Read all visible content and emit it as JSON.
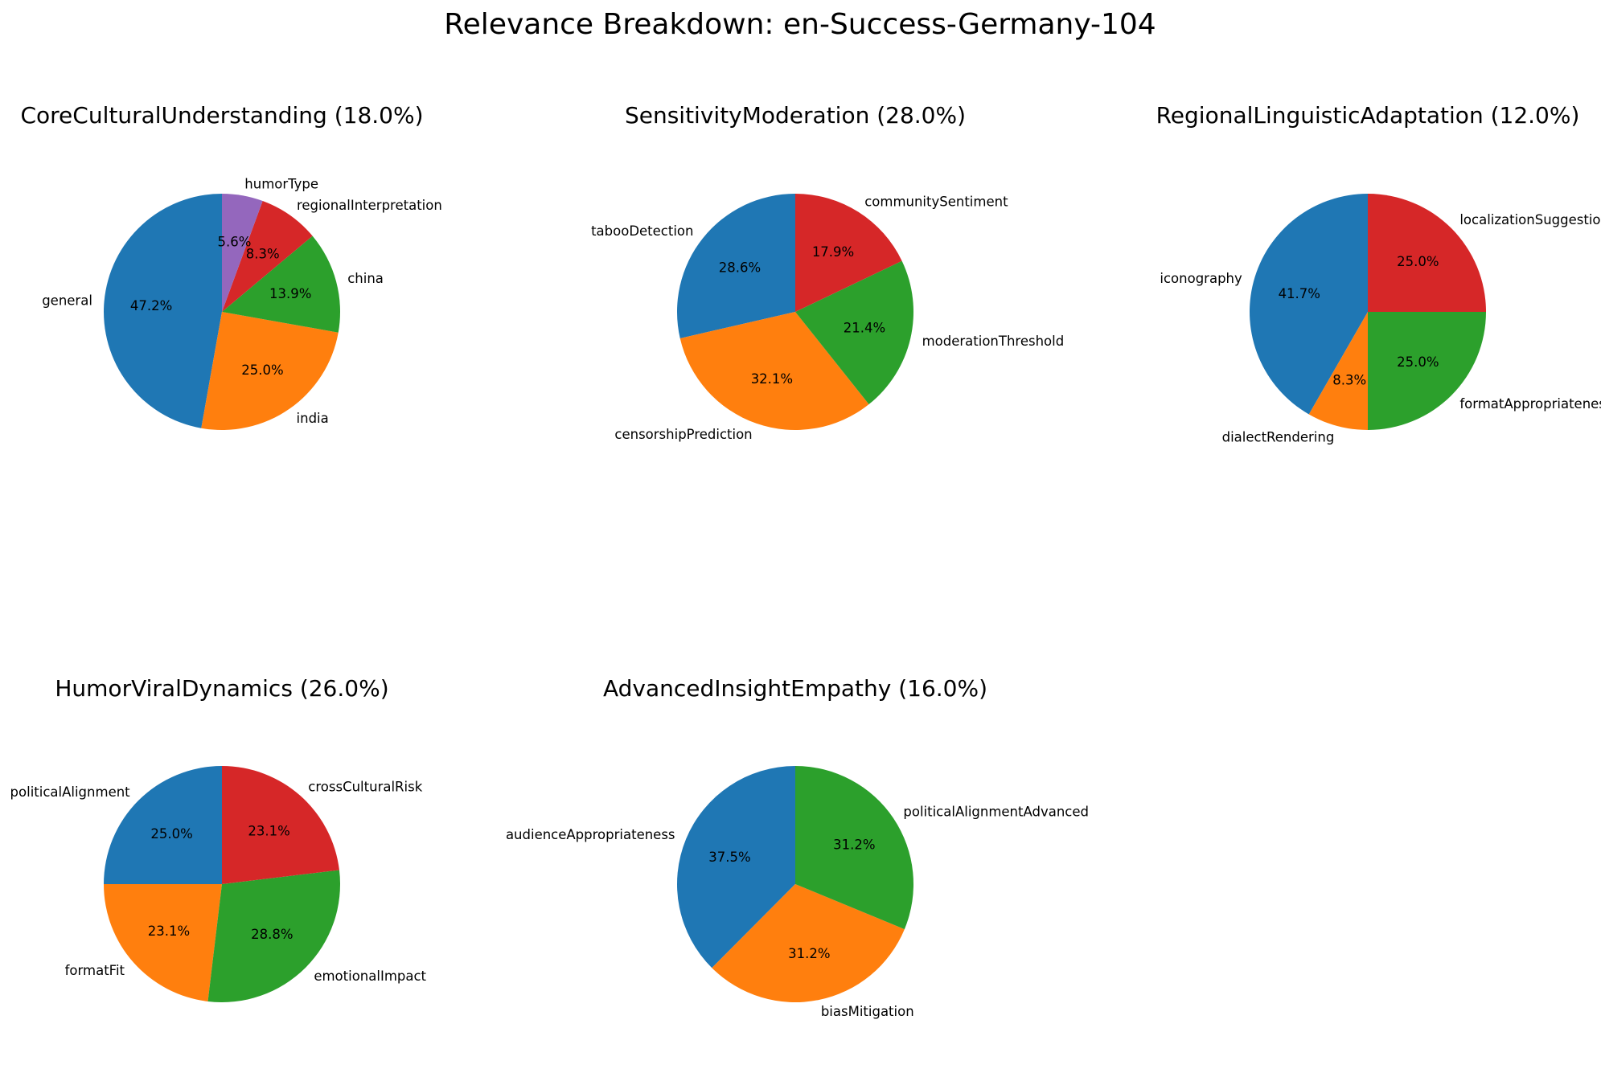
{
  "chart_data": {
    "type": "pie",
    "title": "Relevance Breakdown: en-Success-Germany-104",
    "colors": [
      "#1f77b4",
      "#ff7f0e",
      "#2ca02c",
      "#d62728",
      "#9467bd"
    ],
    "pies": [
      {
        "title": "CoreCulturalUnderstanding (18.0%)",
        "slices": [
          {
            "label": "general",
            "value": 47.2,
            "pct": "47.2%",
            "color": "#1f77b4"
          },
          {
            "label": "india",
            "value": 25.0,
            "pct": "25.0%",
            "color": "#ff7f0e"
          },
          {
            "label": "china",
            "value": 13.9,
            "pct": "13.9%",
            "color": "#2ca02c"
          },
          {
            "label": "regionalInterpretation",
            "value": 8.3,
            "pct": "8.3%",
            "color": "#d62728"
          },
          {
            "label": "humorType",
            "value": 5.6,
            "pct": "5.6%",
            "color": "#9467bd"
          }
        ]
      },
      {
        "title": "SensitivityModeration (28.0%)",
        "slices": [
          {
            "label": "tabooDetection",
            "value": 28.6,
            "pct": "28.6%",
            "color": "#1f77b4"
          },
          {
            "label": "censorshipPrediction",
            "value": 32.1,
            "pct": "32.1%",
            "color": "#ff7f0e"
          },
          {
            "label": "moderationThreshold",
            "value": 21.4,
            "pct": "21.4%",
            "color": "#2ca02c"
          },
          {
            "label": "communitySentiment",
            "value": 17.9,
            "pct": "17.9%",
            "color": "#d62728"
          }
        ]
      },
      {
        "title": "RegionalLinguisticAdaptation (12.0%)",
        "slices": [
          {
            "label": "iconography",
            "value": 41.7,
            "pct": "41.7%",
            "color": "#1f77b4"
          },
          {
            "label": "dialectRendering",
            "value": 8.3,
            "pct": "8.3%",
            "color": "#ff7f0e"
          },
          {
            "label": "formatAppropriateness",
            "value": 25.0,
            "pct": "25.0%",
            "color": "#2ca02c"
          },
          {
            "label": "localizationSuggestion",
            "value": 25.0,
            "pct": "25.0%",
            "color": "#d62728"
          }
        ]
      },
      {
        "title": "HumorViralDynamics (26.0%)",
        "slices": [
          {
            "label": "politicalAlignment",
            "value": 25.0,
            "pct": "25.0%",
            "color": "#1f77b4"
          },
          {
            "label": "formatFit",
            "value": 23.1,
            "pct": "23.1%",
            "color": "#ff7f0e"
          },
          {
            "label": "emotionalImpact",
            "value": 28.8,
            "pct": "28.8%",
            "color": "#2ca02c"
          },
          {
            "label": "crossCulturalRisk",
            "value": 23.1,
            "pct": "23.1%",
            "color": "#d62728"
          }
        ]
      },
      {
        "title": "AdvancedInsightEmpathy (16.0%)",
        "slices": [
          {
            "label": "audienceAppropriateness",
            "value": 37.5,
            "pct": "37.5%",
            "color": "#1f77b4"
          },
          {
            "label": "biasMitigation",
            "value": 31.2,
            "pct": "31.2%",
            "color": "#ff7f0e"
          },
          {
            "label": "politicalAlignmentAdvanced",
            "value": 31.2,
            "pct": "31.2%",
            "color": "#2ca02c"
          }
        ]
      }
    ]
  }
}
